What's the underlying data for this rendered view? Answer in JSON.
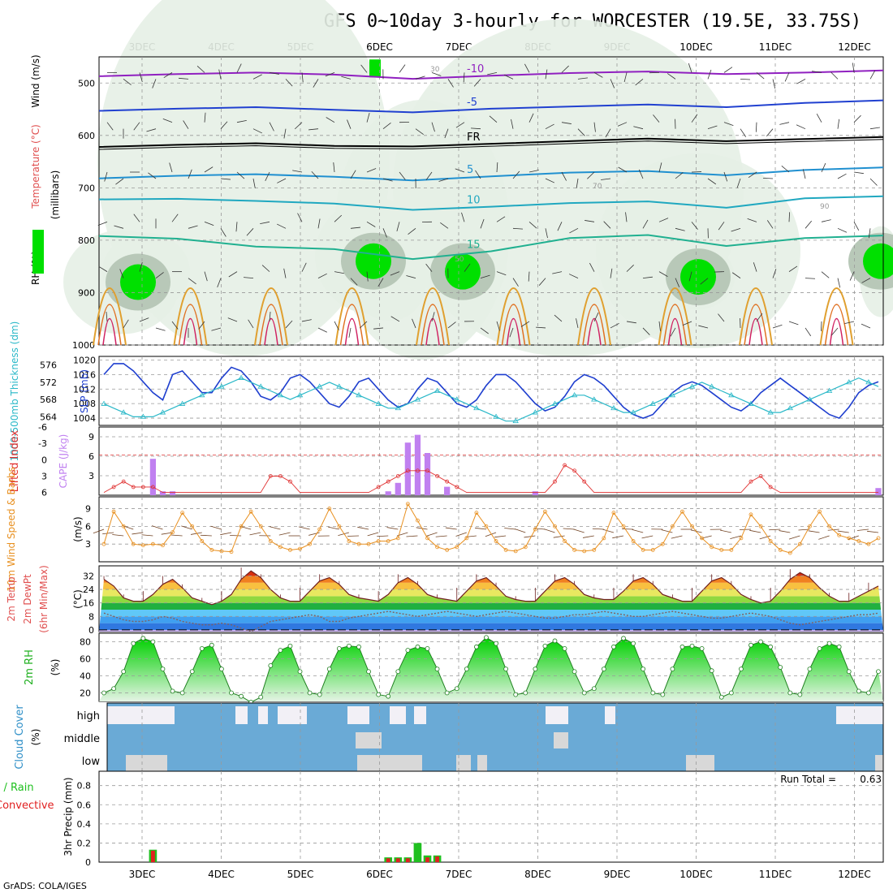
{
  "title": "GFS 0~10day 3-hourly for WORCESTER (19.5E, 33.75S)",
  "footer": "GrADS: COLA/IGES",
  "chart_data": {
    "type": "meteogram",
    "dates": [
      "3DEC",
      "4DEC",
      "5DEC",
      "6DEC",
      "7DEC",
      "8DEC",
      "9DEC",
      "10DEC",
      "11DEC",
      "12DEC"
    ],
    "colors": {
      "rh_green": "#00e000",
      "slp": "#1f3fcf",
      "thickness": "#2ab8c8",
      "cape": "#c080f0",
      "lifted": "#e03030",
      "wind_speed": "#e89020",
      "wind_barb": "#704020",
      "rh2m": "#20b020",
      "cloud": "#6aaad6",
      "cloud_clear": "#f2f0f6",
      "precip_total": "#20c020",
      "precip_conv": "#e02020"
    },
    "panels": [
      {
        "id": "upper-air",
        "ylabels": [
          "RH (%)",
          "Temperature (°C)",
          "Wind (m/s)"
        ],
        "unit_label": "(millibars)",
        "yticks": [
          "500",
          "600",
          "700",
          "800",
          "900",
          "1000"
        ],
        "ylim": [
          450,
          1000
        ],
        "isotherms": [
          {
            "label": "-10",
            "level": [
              487,
              483,
              480,
              484,
              492,
              486,
              481,
              478,
              483,
              480,
              476
            ]
          },
          {
            "label": "-5",
            "level": [
              553,
              549,
              546,
              551,
              556,
              549,
              545,
              541,
              546,
              538,
              533
            ]
          },
          {
            "label": "FR",
            "level": [
              622,
              618,
              615,
              620,
              621,
              616,
              611,
              606,
              611,
              607,
              603
            ]
          },
          {
            "label": "5",
            "level": [
              682,
              677,
              674,
              679,
              686,
              678,
              671,
              668,
              676,
              666,
              661
            ]
          },
          {
            "label": "10",
            "level": [
              722,
              721,
              725,
              730,
              742,
              736,
              729,
              726,
              738,
              720,
              716
            ]
          },
          {
            "label": "15",
            "level": [
              792,
              797,
              812,
              817,
              836,
              821,
              796,
              790,
              811,
              796,
              791
            ]
          }
        ],
        "contour_labels": [
          "30",
          "50",
          "70",
          "90"
        ],
        "temp_labels": [
          "-10",
          "-5",
          "FR",
          "5",
          "10",
          "15"
        ]
      },
      {
        "id": "slp-thickness",
        "ylabels": [
          "1000-500mb Thickness (dm)",
          "SLP (mb)"
        ],
        "left_ticks": [
          "576",
          "572",
          "568",
          "564"
        ],
        "right_ticks": [
          "1020",
          "1016",
          "1012",
          "1008",
          "1004"
        ],
        "slp": [
          1016,
          1019,
          1019,
          1017,
          1014,
          1011,
          1009,
          1016,
          1017,
          1014,
          1011,
          1011,
          1015,
          1018,
          1017,
          1014,
          1010,
          1009,
          1011,
          1015,
          1016,
          1014,
          1011,
          1008,
          1007,
          1010,
          1014,
          1015,
          1012,
          1009,
          1007,
          1008,
          1012,
          1015,
          1014,
          1011,
          1008,
          1007,
          1009,
          1013,
          1016,
          1016,
          1014,
          1011,
          1008,
          1006,
          1007,
          1010,
          1014,
          1016,
          1015,
          1013,
          1010,
          1007,
          1005,
          1004,
          1005,
          1008,
          1011,
          1013,
          1014,
          1013,
          1011,
          1009,
          1007,
          1006,
          1008,
          1011,
          1013,
          1015,
          1013,
          1011,
          1009,
          1007,
          1005,
          1004,
          1007,
          1011,
          1013,
          1014
        ],
        "thickness": [
          567,
          566,
          565,
          564,
          564,
          564,
          565,
          566,
          567,
          568,
          569,
          570,
          571,
          572,
          573,
          572,
          571,
          570,
          569,
          568,
          569,
          570,
          571,
          572,
          571,
          570,
          569,
          568,
          567,
          566,
          566,
          567,
          568,
          569,
          570,
          569,
          568,
          567,
          566,
          565,
          564,
          563,
          563,
          564,
          565,
          566,
          567,
          568,
          569,
          569,
          568,
          567,
          566,
          565,
          565,
          566,
          567,
          568,
          569,
          570,
          571,
          572,
          571,
          570,
          569,
          568,
          567,
          566,
          565,
          565,
          566,
          567,
          568,
          569,
          570,
          571,
          572,
          573,
          572,
          571
        ]
      },
      {
        "id": "cape-li",
        "ylabels": [
          "Lifted Index",
          "CAPE (J/kg)"
        ],
        "left_ticks": [
          "-6",
          "-3",
          "0",
          "3",
          "6"
        ],
        "right_ticks": [
          "9",
          "6",
          "3"
        ],
        "cape": [
          0,
          0,
          0,
          0,
          0,
          5.6,
          0.6,
          0.6,
          0,
          0,
          0,
          0,
          0,
          0,
          0,
          0,
          0,
          0,
          0,
          0,
          0,
          0,
          0,
          0,
          0,
          0,
          0,
          0,
          0,
          0.6,
          1.9,
          8.1,
          9.3,
          6.5,
          0,
          1.3,
          0,
          0,
          0,
          0,
          0,
          0,
          0,
          0,
          0.6,
          0,
          0,
          0,
          0,
          0,
          0,
          0,
          0,
          0,
          0,
          0,
          0,
          0,
          0,
          0,
          0,
          0,
          0,
          0,
          0,
          0,
          0,
          0,
          0,
          0,
          0,
          0,
          0,
          0,
          0,
          0,
          0,
          0,
          0,
          1.1
        ],
        "lifted_index": [
          6,
          5,
          4,
          5,
          5,
          5,
          6,
          6,
          6,
          6,
          6,
          6,
          6,
          6,
          6,
          6,
          6,
          3,
          3,
          4,
          6,
          6,
          6,
          6,
          6,
          6,
          6,
          6,
          5,
          4,
          3,
          2,
          2,
          2,
          3,
          4,
          5,
          6,
          6,
          6,
          6,
          6,
          6,
          6,
          6,
          6,
          4,
          1,
          2,
          4,
          6,
          6,
          6,
          6,
          6,
          6,
          6,
          6,
          6,
          6,
          6,
          6,
          6,
          6,
          6,
          6,
          4,
          3,
          5,
          6,
          6,
          6,
          6,
          6,
          6,
          6,
          6,
          6,
          6,
          6
        ]
      },
      {
        "id": "wind10m",
        "ylabels": [
          "10m Wind Speed & Barbs",
          "(m/s)"
        ],
        "yticks": [
          "9",
          "6",
          "3"
        ],
        "ylim": [
          0,
          11
        ],
        "speed": [
          3,
          8.5,
          6,
          3,
          2.8,
          3,
          2.8,
          5,
          8.3,
          6,
          3.5,
          2,
          1.8,
          1.7,
          6,
          8.5,
          6,
          3.5,
          2.5,
          2,
          2.2,
          3,
          5.5,
          9,
          6,
          3.5,
          3,
          3,
          3.5,
          3.5,
          4,
          9.8,
          7,
          4,
          2.5,
          2,
          2.5,
          4,
          8.3,
          6,
          3.5,
          2,
          1.8,
          2.5,
          5.5,
          8.5,
          6,
          3.5,
          2,
          1.8,
          2,
          4,
          8.3,
          6,
          3.5,
          2,
          2,
          3,
          6,
          8.5,
          6,
          4,
          2.5,
          2,
          2,
          4,
          8,
          6,
          3.5,
          2,
          1.5,
          3,
          6,
          8.5,
          6,
          4.5,
          4,
          3.5,
          3,
          4
        ]
      },
      {
        "id": "temp2m",
        "ylabels": [
          "2m Temp",
          "2m DewPt",
          "(6hr Min/Max)",
          "(°C)"
        ],
        "yticks": [
          "32",
          "24",
          "16",
          "8",
          "0"
        ],
        "ylim": [
          -1,
          38
        ],
        "temp": [
          30,
          26,
          19,
          17,
          17,
          21,
          27,
          30,
          25,
          19,
          17,
          15,
          17,
          21,
          30,
          35,
          31,
          24,
          19,
          17,
          17,
          23,
          29,
          31,
          27,
          21,
          19,
          18,
          17,
          21,
          28,
          31,
          27,
          21,
          19,
          18,
          17,
          23,
          29,
          31,
          26,
          20,
          18,
          17,
          17,
          23,
          29,
          31,
          27,
          21,
          19,
          18,
          18,
          23,
          29,
          31,
          27,
          21,
          19,
          17,
          17,
          23,
          29,
          31,
          27,
          21,
          18,
          16,
          17,
          23,
          30,
          34,
          31,
          25,
          20,
          17,
          17,
          20,
          23,
          26
        ],
        "dewpoint": [
          10,
          8,
          6,
          5,
          5,
          6,
          8,
          7,
          5,
          4,
          3,
          3,
          4,
          3,
          1,
          -1,
          2,
          5,
          6,
          7,
          8,
          9,
          8,
          5,
          5,
          7,
          8,
          9,
          10,
          11,
          10,
          9,
          8,
          9,
          10,
          11,
          10,
          9,
          8,
          9,
          10,
          11,
          10,
          9,
          8,
          7,
          7,
          8,
          9,
          9,
          10,
          11,
          10,
          9,
          8,
          8,
          9,
          10,
          11,
          10,
          9,
          8,
          7,
          7,
          8,
          9,
          10,
          9,
          8,
          6,
          4,
          3,
          4,
          5,
          6,
          7,
          8,
          9,
          9,
          10
        ]
      },
      {
        "id": "rh2m",
        "ylabels": [
          "2m RH",
          "(%)"
        ],
        "yticks": [
          "80",
          "60",
          "40",
          "20"
        ],
        "ylim": [
          10,
          90
        ],
        "rh": [
          20,
          25,
          45,
          78,
          84,
          80,
          48,
          22,
          20,
          45,
          72,
          76,
          48,
          20,
          16,
          9,
          15,
          52,
          70,
          75,
          45,
          20,
          18,
          48,
          72,
          75,
          74,
          45,
          18,
          16,
          45,
          70,
          74,
          72,
          48,
          20,
          25,
          48,
          74,
          85,
          78,
          48,
          18,
          20,
          48,
          75,
          81,
          72,
          45,
          20,
          25,
          48,
          74,
          84,
          78,
          48,
          20,
          18,
          48,
          74,
          75,
          72,
          46,
          15,
          20,
          48,
          76,
          80,
          74,
          50,
          20,
          18,
          48,
          72,
          78,
          74,
          45,
          22,
          20,
          45
        ]
      },
      {
        "id": "cloud",
        "ylabels": [
          "Cloud Cover",
          "(%)"
        ],
        "levels": [
          "high",
          "middle",
          "low"
        ]
      },
      {
        "id": "precip",
        "ylabels": [
          "Total / Rain",
          "Convective",
          "3hr Precip (mm)"
        ],
        "yticks": [
          "0.8",
          "0.6",
          "0.4",
          "0.2",
          "0"
        ],
        "ylim": [
          0,
          0.95
        ],
        "run_total_label": "Run Total =",
        "run_total": "0.63",
        "total": [
          0,
          0,
          0,
          0,
          0,
          0.13,
          0,
          0,
          0,
          0,
          0,
          0,
          0,
          0,
          0,
          0,
          0,
          0,
          0,
          0,
          0,
          0,
          0,
          0,
          0,
          0,
          0,
          0,
          0,
          0.05,
          0.05,
          0.05,
          0.2,
          0.07,
          0.07,
          0,
          0,
          0,
          0,
          0,
          0,
          0,
          0,
          0,
          0,
          0,
          0,
          0,
          0,
          0,
          0,
          0,
          0,
          0,
          0,
          0,
          0,
          0,
          0,
          0,
          0,
          0,
          0,
          0,
          0,
          0,
          0,
          0,
          0,
          0,
          0,
          0,
          0,
          0,
          0,
          0,
          0,
          0,
          0,
          0
        ],
        "convective": [
          0,
          0,
          0,
          0,
          0,
          0.12,
          0,
          0,
          0,
          0,
          0,
          0,
          0,
          0,
          0,
          0,
          0,
          0,
          0,
          0,
          0,
          0,
          0,
          0,
          0,
          0,
          0,
          0,
          0,
          0.04,
          0.04,
          0.04,
          0,
          0.05,
          0.06,
          0,
          0,
          0,
          0,
          0,
          0,
          0,
          0,
          0,
          0,
          0,
          0,
          0,
          0,
          0,
          0,
          0,
          0,
          0,
          0,
          0,
          0,
          0,
          0,
          0,
          0,
          0,
          0,
          0,
          0,
          0,
          0,
          0,
          0,
          0,
          0,
          0,
          0,
          0,
          0,
          0,
          0,
          0,
          0,
          0
        ]
      }
    ]
  }
}
